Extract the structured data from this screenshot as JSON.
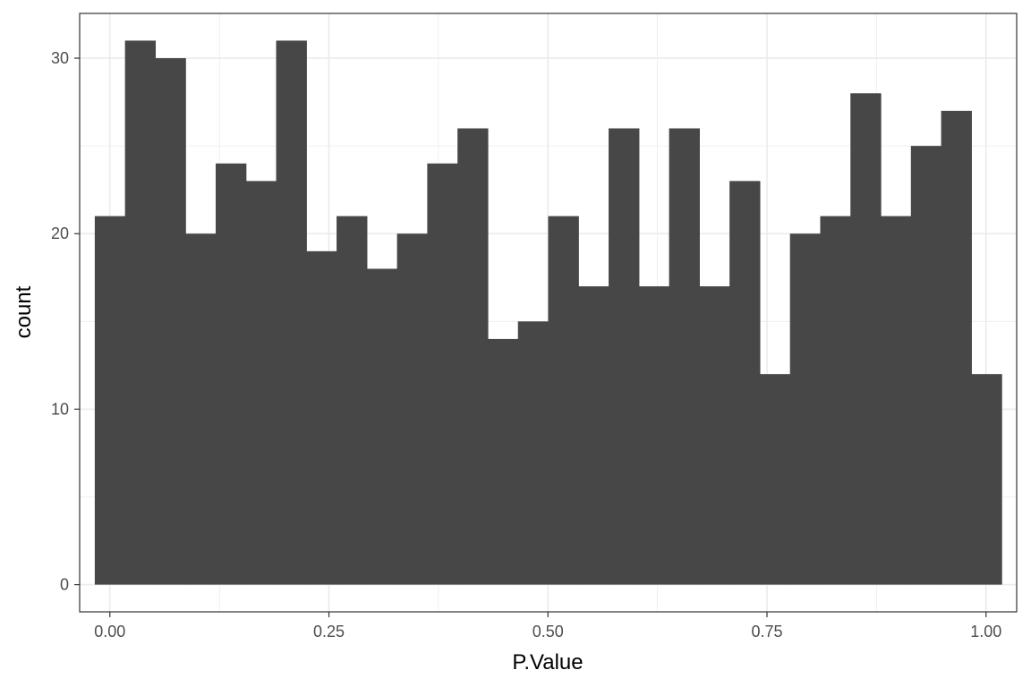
{
  "chart_data": {
    "type": "bar",
    "subtype": "histogram",
    "title": "",
    "xlabel": "P.Value",
    "ylabel": "count",
    "bin_width": 0.0345,
    "bins": [
      {
        "x": 0.0,
        "count": 21
      },
      {
        "x": 0.0345,
        "count": 31
      },
      {
        "x": 0.069,
        "count": 30
      },
      {
        "x": 0.1035,
        "count": 20
      },
      {
        "x": 0.138,
        "count": 24
      },
      {
        "x": 0.1725,
        "count": 23
      },
      {
        "x": 0.207,
        "count": 31
      },
      {
        "x": 0.2415,
        "count": 19
      },
      {
        "x": 0.276,
        "count": 21
      },
      {
        "x": 0.3105,
        "count": 18
      },
      {
        "x": 0.345,
        "count": 20
      },
      {
        "x": 0.3795,
        "count": 24
      },
      {
        "x": 0.414,
        "count": 26
      },
      {
        "x": 0.4485,
        "count": 14
      },
      {
        "x": 0.483,
        "count": 15
      },
      {
        "x": 0.5175,
        "count": 21
      },
      {
        "x": 0.552,
        "count": 17
      },
      {
        "x": 0.5865,
        "count": 26
      },
      {
        "x": 0.621,
        "count": 17
      },
      {
        "x": 0.6555,
        "count": 26
      },
      {
        "x": 0.69,
        "count": 17
      },
      {
        "x": 0.7245,
        "count": 23
      },
      {
        "x": 0.759,
        "count": 12
      },
      {
        "x": 0.7935,
        "count": 20
      },
      {
        "x": 0.828,
        "count": 21
      },
      {
        "x": 0.8625,
        "count": 28
      },
      {
        "x": 0.897,
        "count": 21
      },
      {
        "x": 0.9315,
        "count": 25
      },
      {
        "x": 0.966,
        "count": 27
      },
      {
        "x": 1.0005,
        "count": 12
      }
    ],
    "x_ticks": [
      "0.00",
      "0.25",
      "0.50",
      "0.75",
      "1.00"
    ],
    "y_ticks": [
      "0",
      "10",
      "20",
      "30"
    ],
    "xlim": [
      -0.0345,
      1.035
    ],
    "ylim": [
      -1.55,
      32.55
    ],
    "grid": true,
    "legend": "none",
    "bar_color": "#474747",
    "panel_border_color": "#333333",
    "grid_color": "#ebebeb"
  }
}
